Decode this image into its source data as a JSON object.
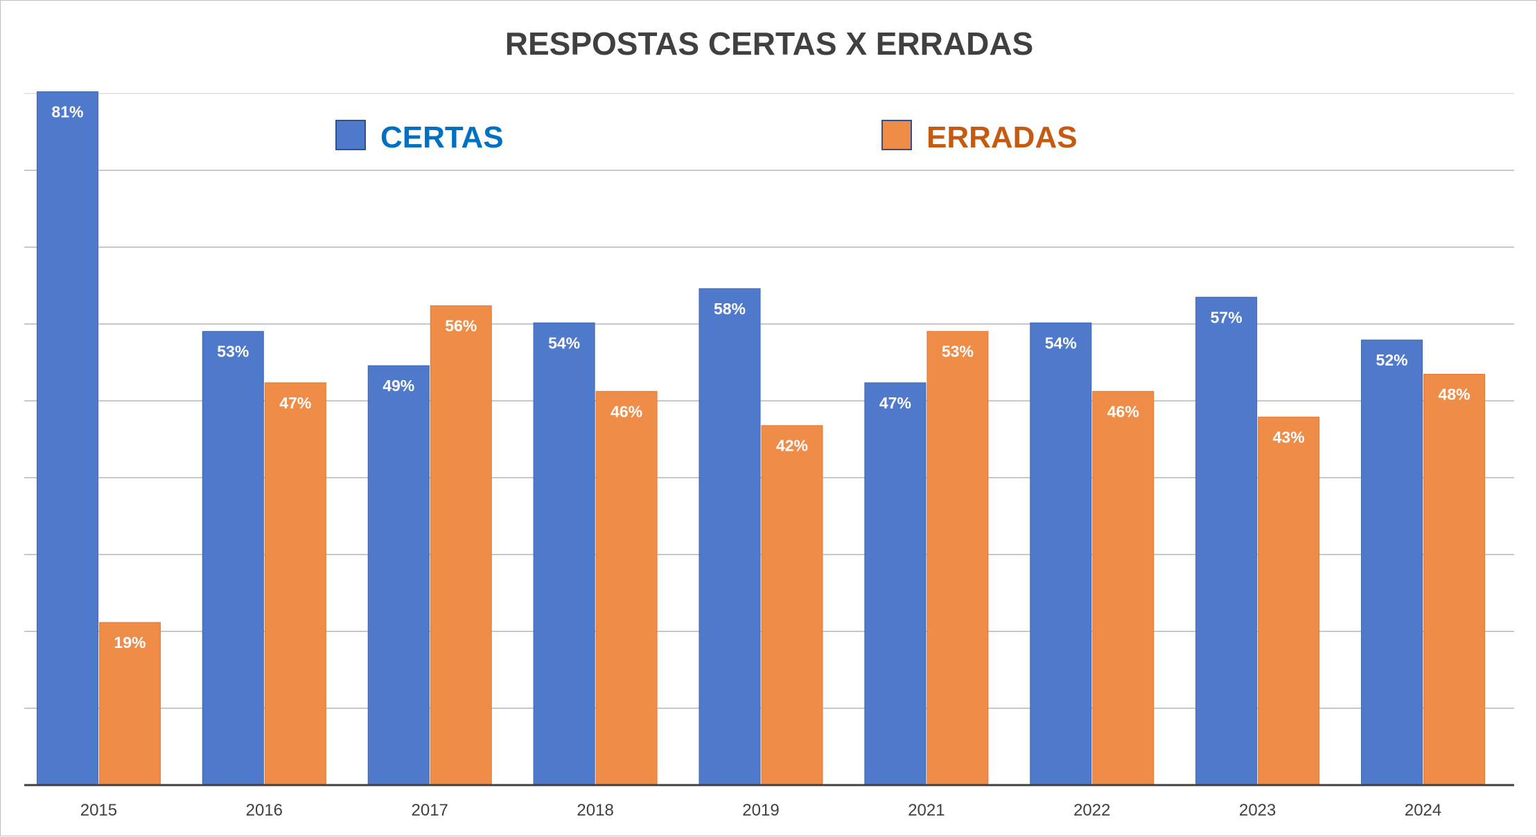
{
  "chart_data": {
    "type": "bar",
    "title": "RESPOSTAS CERTAS X ERRADAS",
    "xlabel": "",
    "ylabel": "",
    "categories": [
      "2015",
      "2016",
      "2017",
      "2018",
      "2019",
      "2021",
      "2022",
      "2023",
      "2024"
    ],
    "series": [
      {
        "name": "CERTAS",
        "values": [
          81,
          53,
          49,
          54,
          58,
          47,
          54,
          57,
          52
        ],
        "labels": [
          "81%",
          "53%",
          "49%",
          "54%",
          "58%",
          "47%",
          "54%",
          "57%",
          "52%"
        ],
        "color": "#4f7acb",
        "legend_color": "#0070c0"
      },
      {
        "name": "ERRADAS",
        "values": [
          19,
          47,
          56,
          46,
          42,
          53,
          46,
          43,
          48
        ],
        "labels": [
          "19%",
          "47%",
          "56%",
          "46%",
          "42%",
          "53%",
          "46%",
          "43%",
          "48%"
        ],
        "color": "#ef8c47",
        "legend_color": "#c55a11"
      }
    ],
    "ylim": [
      0,
      80.8
    ],
    "gridlines": true,
    "legend_position": "top",
    "y_tick_labels_shown": false
  }
}
